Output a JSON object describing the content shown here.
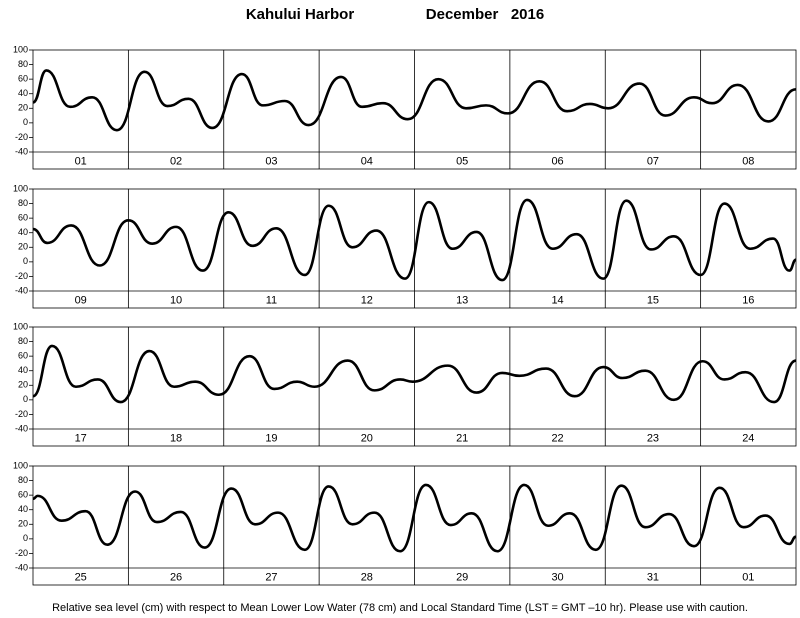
{
  "header": {
    "title": "Kahului Harbor",
    "month": "December   2016"
  },
  "note": "Relative sea level (cm) with respect to Mean Lower Low Water (78 cm) and Local Standard Time (LST = GMT –10 hr). Please use with caution.",
  "chart_data": [
    {
      "type": "line",
      "color": "#000000",
      "categories": [
        "01",
        "02",
        "03",
        "04",
        "05",
        "06",
        "07",
        "08"
      ],
      "xlim": [
        0,
        8
      ],
      "ylim": [
        -40,
        100
      ],
      "yticks": [
        -40,
        -20,
        0,
        20,
        40,
        60,
        80,
        100
      ],
      "x": [
        0,
        0.14,
        0.39,
        0.62,
        0.88,
        1.17,
        1.41,
        1.63,
        1.88,
        2.19,
        2.41,
        2.64,
        2.89,
        3.23,
        3.45,
        3.67,
        3.93,
        4.25,
        4.54,
        4.75,
        4.98,
        5.31,
        5.6,
        5.84,
        6.03,
        6.36,
        6.63,
        6.93,
        7.12,
        7.39,
        7.71,
        8
      ],
      "values": [
        28,
        72,
        22,
        35,
        -10,
        70,
        23,
        33,
        -7,
        67,
        24,
        30,
        -3,
        63,
        22,
        27,
        5,
        60,
        20,
        24,
        13,
        57,
        16,
        26,
        20,
        54,
        10,
        35,
        27,
        52,
        2,
        46
      ]
    },
    {
      "type": "line",
      "color": "#000000",
      "categories": [
        "09",
        "10",
        "11",
        "12",
        "13",
        "14",
        "15",
        "16"
      ],
      "xlim": [
        0,
        8
      ],
      "ylim": [
        -40,
        100
      ],
      "yticks": [
        -40,
        -20,
        0,
        20,
        40,
        60,
        80,
        100
      ],
      "x": [
        0,
        0.15,
        0.4,
        0.7,
        1.0,
        1.25,
        1.5,
        1.78,
        2.05,
        2.3,
        2.55,
        2.85,
        3.1,
        3.35,
        3.6,
        3.9,
        4.15,
        4.4,
        4.65,
        4.92,
        5.18,
        5.45,
        5.7,
        5.98,
        6.22,
        6.48,
        6.72,
        7.0,
        7.25,
        7.52,
        7.76,
        7.93,
        8
      ],
      "values": [
        45,
        26,
        50,
        -5,
        57,
        25,
        48,
        -12,
        68,
        22,
        46,
        -18,
        77,
        20,
        43,
        -23,
        82,
        18,
        41,
        -25,
        85,
        18,
        38,
        -23,
        84,
        17,
        35,
        -18,
        80,
        18,
        32,
        -12,
        3
      ]
    },
    {
      "type": "line",
      "color": "#000000",
      "categories": [
        "17",
        "18",
        "19",
        "20",
        "21",
        "22",
        "23",
        "24"
      ],
      "xlim": [
        0,
        8
      ],
      "ylim": [
        -40,
        100
      ],
      "yticks": [
        -40,
        -20,
        0,
        20,
        40,
        60,
        80,
        100
      ],
      "x": [
        0,
        0.2,
        0.45,
        0.68,
        0.92,
        1.22,
        1.48,
        1.7,
        1.95,
        2.27,
        2.53,
        2.77,
        2.95,
        3.3,
        3.58,
        3.85,
        3.98,
        4.35,
        4.65,
        4.92,
        5.1,
        5.38,
        5.68,
        5.98,
        6.18,
        6.42,
        6.72,
        7.02,
        7.25,
        7.47,
        7.77,
        8
      ],
      "values": [
        5,
        74,
        18,
        28,
        -3,
        67,
        18,
        25,
        7,
        60,
        15,
        25,
        18,
        54,
        13,
        28,
        25,
        47,
        10,
        37,
        33,
        43,
        5,
        45,
        30,
        40,
        0,
        53,
        28,
        38,
        -3,
        54
      ]
    },
    {
      "type": "line",
      "color": "#000000",
      "categories": [
        "25",
        "26",
        "27",
        "28",
        "29",
        "30",
        "31",
        "01"
      ],
      "xlim": [
        0,
        8
      ],
      "ylim": [
        -40,
        100
      ],
      "yticks": [
        -40,
        -20,
        0,
        20,
        40,
        60,
        80,
        100
      ],
      "x": [
        0,
        0.05,
        0.3,
        0.55,
        0.78,
        1.07,
        1.3,
        1.55,
        1.8,
        2.08,
        2.33,
        2.57,
        2.85,
        3.1,
        3.35,
        3.58,
        3.85,
        4.12,
        4.38,
        4.6,
        4.87,
        5.15,
        5.4,
        5.63,
        5.9,
        6.17,
        6.42,
        6.67,
        6.93,
        7.2,
        7.45,
        7.68,
        7.93,
        8
      ],
      "values": [
        55,
        59,
        25,
        38,
        -8,
        65,
        23,
        37,
        -12,
        69,
        20,
        36,
        -15,
        72,
        20,
        36,
        -17,
        74,
        19,
        35,
        -17,
        74,
        18,
        35,
        -15,
        73,
        16,
        34,
        -10,
        70,
        16,
        32,
        -7,
        3
      ]
    }
  ]
}
